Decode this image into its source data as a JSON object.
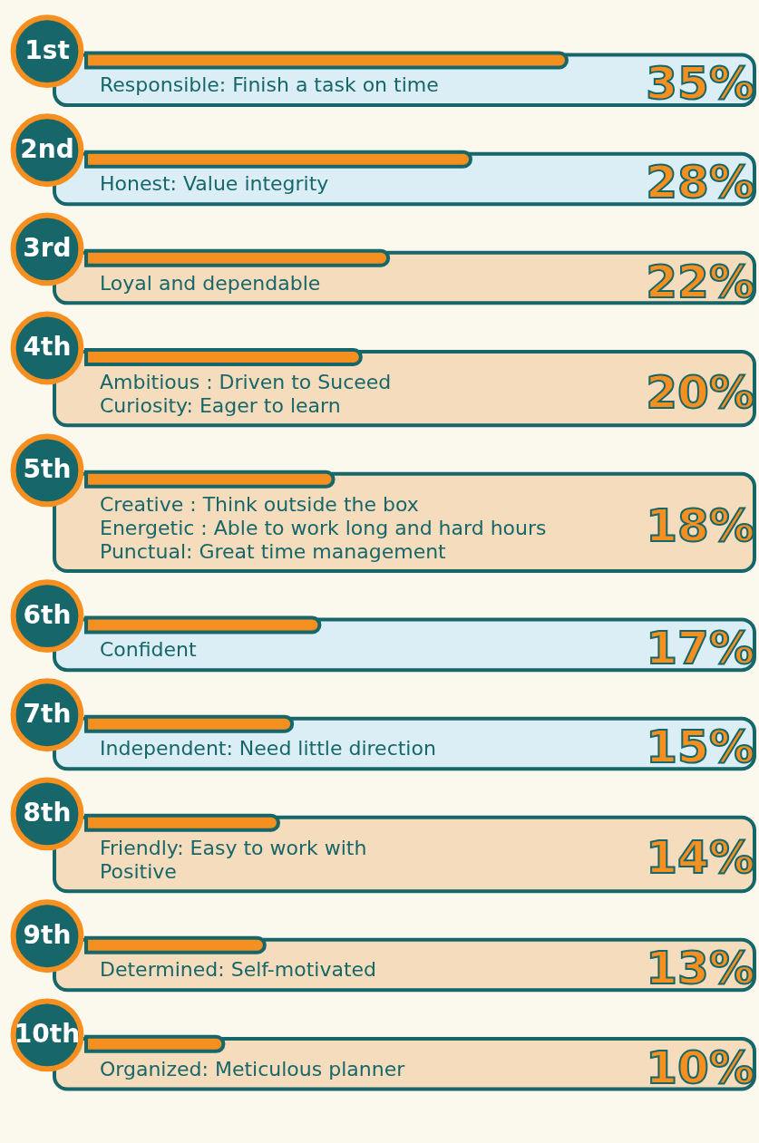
{
  "chart_data": {
    "type": "bar",
    "orientation": "horizontal",
    "categories": [
      "Responsible: Finish a task on time",
      "Honest: Value integrity",
      "Loyal and dependable",
      "Ambitious : Driven to Suceed\nCuriosity: Eager to learn",
      "Creative : Think outside the box\nEnergetic : Able to work long and hard hours\nPunctual: Great time management",
      "Confident",
      "Independent: Need little direction",
      "Friendly: Easy to work with\nPositive",
      "Determined: Self-motivated",
      "Organized: Meticulous planner"
    ],
    "series": [
      {
        "color": "#f58f1f",
        "values": [
          35,
          28,
          22,
          20,
          18,
          17,
          15,
          14,
          13,
          10
        ],
        "value_labels": [
          "35%",
          "28%",
          "22%",
          "20%",
          "18%",
          "17%",
          "15%",
          "14%",
          "13%",
          "10%"
        ]
      }
    ],
    "annotations": [
      "1st",
      "2nd",
      "3rd",
      "4th",
      "5th",
      "6th",
      "7th",
      "8th",
      "9th",
      "10th"
    ]
  }
}
